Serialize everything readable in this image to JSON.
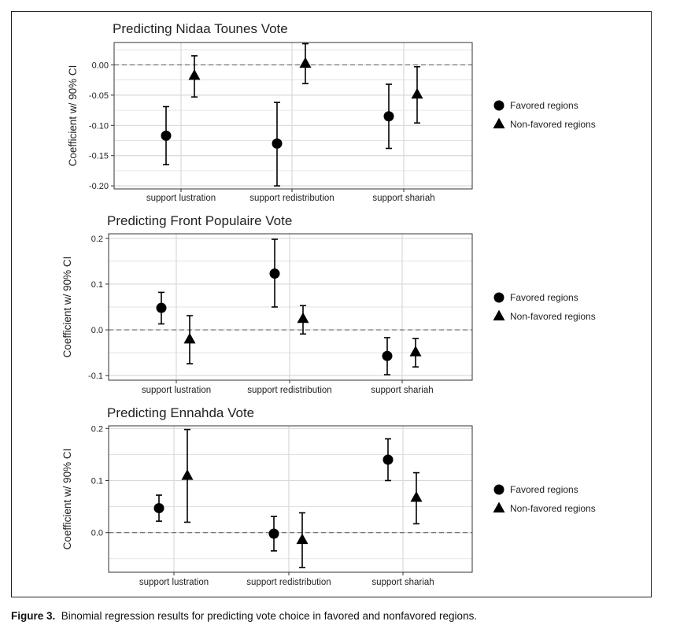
{
  "caption": {
    "label": "Figure 3.",
    "text": "Binomial regression results for predicting vote choice in favored and nonfavored regions."
  },
  "colors": {
    "marker": "#000000",
    "grid": "#d9d9d9",
    "zero_line": "#666666",
    "panel_border": "#333333",
    "text": "#222222"
  },
  "chart_data": [
    {
      "type": "scatter",
      "title": "Predicting Nidaa Tounes Vote",
      "ylabel": "Coefficient w/ 90% CI",
      "categories": [
        "support lustration",
        "support redistribution",
        "support shariah"
      ],
      "ylim": [
        -0.205,
        0.037
      ],
      "yticks": [
        0.0,
        -0.05,
        -0.1,
        -0.15,
        -0.2
      ],
      "ytick_labels": [
        "0.00",
        "-0.05",
        "-0.10",
        "-0.15",
        "-0.20"
      ],
      "zero_line": true,
      "grid": true,
      "legend_position": "right",
      "series": [
        {
          "name": "Favored regions",
          "marker": "circle",
          "values": [
            -0.117,
            -0.13,
            -0.085
          ],
          "lower": [
            -0.165,
            -0.2,
            -0.138
          ],
          "upper": [
            -0.069,
            -0.062,
            -0.032
          ]
        },
        {
          "name": "Non-favored regions",
          "marker": "triangle",
          "values": [
            -0.018,
            0.002,
            -0.049
          ],
          "lower": [
            -0.053,
            -0.031,
            -0.096
          ],
          "upper": [
            0.015,
            0.035,
            -0.003
          ]
        }
      ]
    },
    {
      "type": "scatter",
      "title": "Predicting Front Populaire Vote",
      "ylabel": "Coefficient w/ 90% CI",
      "categories": [
        "support lustration",
        "support redistribution",
        "support shariah"
      ],
      "ylim": [
        -0.11,
        0.21
      ],
      "yticks": [
        0.2,
        0.1,
        0.0,
        -0.1
      ],
      "ytick_labels": [
        "0.2",
        "0.1",
        "0.0",
        "-0.1"
      ],
      "zero_line": true,
      "grid": true,
      "legend_position": "right",
      "series": [
        {
          "name": "Favored regions",
          "marker": "circle",
          "values": [
            0.048,
            0.123,
            -0.057
          ],
          "lower": [
            0.013,
            0.05,
            -0.098
          ],
          "upper": [
            0.082,
            0.198,
            -0.017
          ]
        },
        {
          "name": "Non-favored regions",
          "marker": "triangle",
          "values": [
            -0.021,
            0.024,
            -0.049
          ],
          "lower": [
            -0.074,
            -0.009,
            -0.081
          ],
          "upper": [
            0.031,
            0.053,
            -0.019
          ]
        }
      ]
    },
    {
      "type": "scatter",
      "title": "Predicting Ennahda Vote",
      "ylabel": "Coefficient w/ 90% CI",
      "categories": [
        "support lustration",
        "support redistribution",
        "support shariah"
      ],
      "ylim": [
        -0.076,
        0.205
      ],
      "yticks": [
        0.2,
        0.1,
        0.0
      ],
      "ytick_labels": [
        "0.2",
        "0.1",
        "0.0"
      ],
      "zero_line": true,
      "grid": true,
      "legend_position": "right",
      "series": [
        {
          "name": "Favored regions",
          "marker": "circle",
          "values": [
            0.047,
            -0.002,
            0.14
          ],
          "lower": [
            0.022,
            -0.035,
            0.1
          ],
          "upper": [
            0.072,
            0.031,
            0.18
          ]
        },
        {
          "name": "Non-favored regions",
          "marker": "triangle",
          "values": [
            0.109,
            -0.014,
            0.067
          ],
          "lower": [
            0.02,
            -0.067,
            0.017
          ],
          "upper": [
            0.198,
            0.038,
            0.115
          ]
        }
      ]
    }
  ]
}
